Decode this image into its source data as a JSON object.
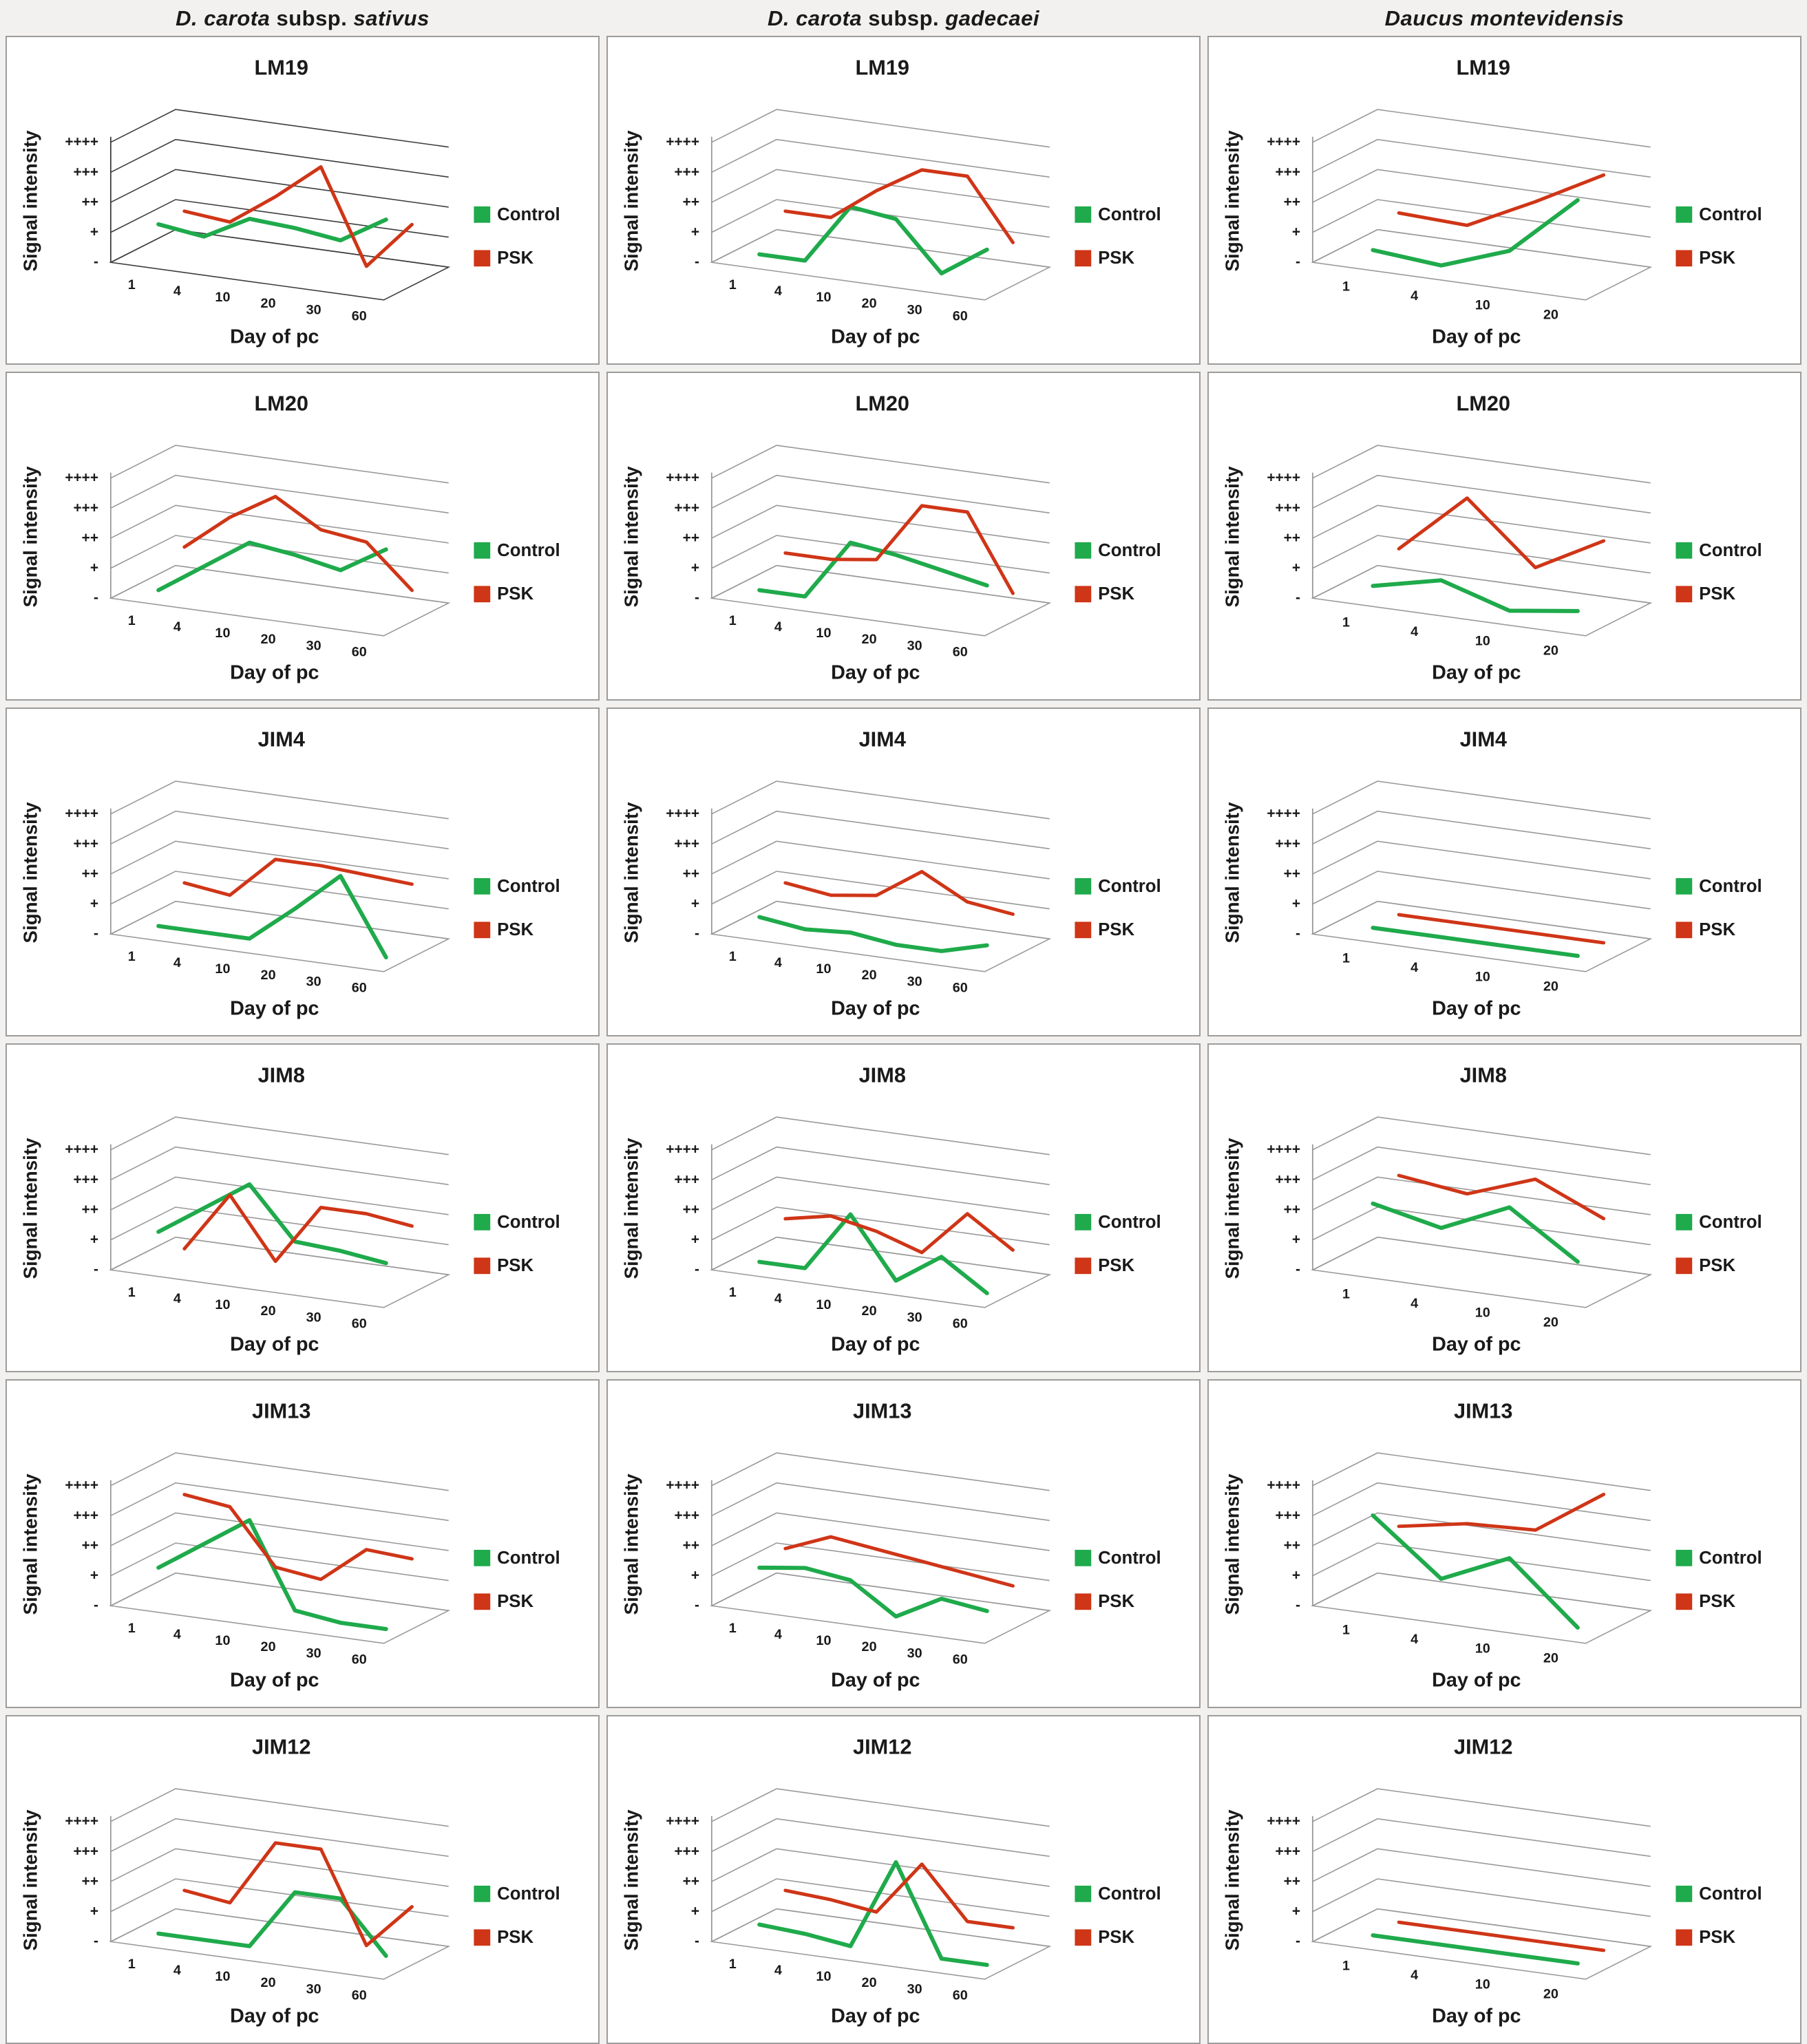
{
  "columns": [
    {
      "header_parts": [
        {
          "text": "D. carota",
          "italic": true
        },
        {
          "text": " subsp. ",
          "italic": false
        },
        {
          "text": "sativus",
          "italic": true
        }
      ],
      "header_text": "D. carota subsp. sativus"
    },
    {
      "header_parts": [
        {
          "text": "D. carota",
          "italic": true
        },
        {
          "text": " subsp. ",
          "italic": false
        },
        {
          "text": "gadecaei",
          "italic": true
        }
      ],
      "header_text": "D. carota subsp. gadecaei"
    },
    {
      "header_parts": [
        {
          "text": "Daucus montevidensis",
          "italic": true
        }
      ],
      "header_text": "Daucus montevidensis"
    }
  ],
  "axis": {
    "xlabel": "Day of pc",
    "ylabel": "Signal intensity",
    "yticks_bottom_to_top": [
      "-",
      "+",
      "++",
      "+++",
      "++++"
    ],
    "value_scale_note": "0 = '-', 1 = '+', 2 = '++', 3 = '+++', 4 = '++++'"
  },
  "legend": {
    "control_label": "Control",
    "psk_label": "PSK",
    "position": "right"
  },
  "colors": {
    "control": "#1faa4b",
    "psk": "#cf3517",
    "grid": "#999999",
    "grid_dark": "#3c3c3c",
    "text": "#1a1a1a",
    "panel_border": "#9c9c9c"
  },
  "chart_data": [
    {
      "type": "line",
      "title": "LM19",
      "species": "D. carota subsp. sativus",
      "col": 0,
      "row": 0,
      "grid": "dark",
      "x": [
        1,
        4,
        10,
        20,
        30,
        60
      ],
      "xlabel": "Day of pc",
      "ylabel": "Signal intensity",
      "ylim": [
        0,
        4
      ],
      "series": [
        {
          "name": "Control",
          "values": [
            1,
            0.8,
            1.6,
            1.5,
            1.3,
            2.2
          ]
        },
        {
          "name": "PSK",
          "values": [
            1,
            0.85,
            1.9,
            3.1,
            0,
            1.6
          ]
        }
      ]
    },
    {
      "type": "line",
      "title": "LM19",
      "species": "D. carota subsp. gadecaei",
      "col": 1,
      "row": 0,
      "grid": "normal",
      "x": [
        1,
        4,
        10,
        20,
        30,
        60
      ],
      "xlabel": "Day of pc",
      "ylabel": "Signal intensity",
      "ylim": [
        0,
        4
      ],
      "series": [
        {
          "name": "Control",
          "values": [
            0,
            0,
            2,
            1.8,
            0.2,
            1.2
          ]
        },
        {
          "name": "PSK",
          "values": [
            1,
            1,
            2.1,
            3,
            3,
            1
          ]
        }
      ]
    },
    {
      "type": "line",
      "title": "LM19",
      "species": "Daucus montevidensis",
      "col": 2,
      "row": 0,
      "grid": "normal",
      "x": [
        1,
        4,
        10,
        20
      ],
      "xlabel": "Day of pc",
      "ylabel": "Signal intensity",
      "ylim": [
        0,
        4
      ],
      "series": [
        {
          "name": "Control",
          "values": [
            0.2,
            0,
            0.8,
            2.8
          ]
        },
        {
          "name": "PSK",
          "values": [
            1,
            0.9,
            2,
            3.2
          ]
        }
      ]
    },
    {
      "type": "line",
      "title": "LM20",
      "species": "D. carota subsp. sativus",
      "col": 0,
      "row": 1,
      "grid": "normal",
      "x": [
        1,
        4,
        10,
        20,
        30,
        60
      ],
      "xlabel": "Day of pc",
      "ylabel": "Signal intensity",
      "ylim": [
        0,
        4
      ],
      "series": [
        {
          "name": "Control",
          "values": [
            0,
            1,
            2,
            1.8,
            1.5,
            2.4
          ]
        },
        {
          "name": "PSK",
          "values": [
            1,
            2.2,
            3.1,
            2.2,
            2,
            0.6
          ]
        }
      ]
    },
    {
      "type": "line",
      "title": "LM20",
      "species": "D. carota subsp. gadecaei",
      "col": 1,
      "row": 1,
      "grid": "normal",
      "x": [
        1,
        4,
        10,
        20,
        30,
        60
      ],
      "xlabel": "Day of pc",
      "ylabel": "Signal intensity",
      "ylim": [
        0,
        4
      ],
      "series": [
        {
          "name": "Control",
          "values": [
            0,
            0,
            2,
            1.8,
            1.5,
            1.2
          ]
        },
        {
          "name": "PSK",
          "values": [
            0.8,
            0.8,
            1,
            3,
            3,
            0.5
          ]
        }
      ]
    },
    {
      "type": "line",
      "title": "LM20",
      "species": "Daucus montevidensis",
      "col": 2,
      "row": 1,
      "grid": "normal",
      "x": [
        1,
        4,
        10,
        20
      ],
      "xlabel": "Day of pc",
      "ylabel": "Signal intensity",
      "ylim": [
        0,
        4
      ],
      "series": [
        {
          "name": "Control",
          "values": [
            0.2,
            0.7,
            0,
            0.3
          ]
        },
        {
          "name": "PSK",
          "values": [
            1,
            3,
            1,
            2.2
          ]
        }
      ]
    },
    {
      "type": "line",
      "title": "JIM4",
      "species": "D. carota subsp. sativus",
      "col": 0,
      "row": 2,
      "grid": "normal",
      "x": [
        1,
        4,
        10,
        20,
        30,
        60
      ],
      "xlabel": "Day of pc",
      "ylabel": "Signal intensity",
      "ylim": [
        0,
        4
      ],
      "series": [
        {
          "name": "Control",
          "values": [
            0,
            0,
            0,
            1.2,
            2.5,
            0
          ]
        },
        {
          "name": "PSK",
          "values": [
            1,
            0.8,
            2.2,
            2.2,
            2.1,
            2
          ]
        }
      ]
    },
    {
      "type": "line",
      "title": "JIM4",
      "species": "D. carota subsp. gadecaei",
      "col": 1,
      "row": 2,
      "grid": "normal",
      "x": [
        1,
        4,
        10,
        20,
        30,
        60
      ],
      "xlabel": "Day of pc",
      "ylabel": "Signal intensity",
      "ylim": [
        0,
        4
      ],
      "series": [
        {
          "name": "Control",
          "values": [
            0.3,
            0.1,
            0.2,
            0,
            0,
            0.4
          ]
        },
        {
          "name": "PSK",
          "values": [
            1,
            0.8,
            1,
            2,
            1.2,
            1
          ]
        }
      ]
    },
    {
      "type": "line",
      "title": "JIM4",
      "species": "Daucus montevidensis",
      "col": 2,
      "row": 2,
      "grid": "normal",
      "x": [
        1,
        4,
        10,
        20
      ],
      "xlabel": "Day of pc",
      "ylabel": "Signal intensity",
      "ylim": [
        0,
        4
      ],
      "series": [
        {
          "name": "Control",
          "values": [
            0,
            0,
            0,
            0
          ]
        },
        {
          "name": "PSK",
          "values": [
            0,
            0,
            0,
            0
          ]
        }
      ]
    },
    {
      "type": "line",
      "title": "JIM8",
      "species": "D. carota subsp. sativus",
      "col": 0,
      "row": 3,
      "grid": "normal",
      "x": [
        1,
        4,
        10,
        20,
        30,
        60
      ],
      "xlabel": "Day of pc",
      "ylabel": "Signal intensity",
      "ylim": [
        0,
        4
      ],
      "series": [
        {
          "name": "Control",
          "values": [
            1,
            2,
            3,
            1.3,
            1.2,
            1
          ]
        },
        {
          "name": "PSK",
          "values": [
            0,
            2,
            0,
            2,
            2,
            1.8
          ]
        }
      ]
    },
    {
      "type": "line",
      "title": "JIM8",
      "species": "D. carota subsp. gadecaei",
      "col": 1,
      "row": 3,
      "grid": "normal",
      "x": [
        1,
        4,
        10,
        20,
        30,
        60
      ],
      "xlabel": "Day of pc",
      "ylabel": "Signal intensity",
      "ylim": [
        0,
        4
      ],
      "series": [
        {
          "name": "Control",
          "values": [
            0,
            0,
            2,
            0,
            1,
            0
          ]
        },
        {
          "name": "PSK",
          "values": [
            1,
            1.3,
            1,
            0.5,
            2,
            1
          ]
        }
      ]
    },
    {
      "type": "line",
      "title": "JIM8",
      "species": "Daucus montevidensis",
      "col": 2,
      "row": 3,
      "grid": "normal",
      "x": [
        1,
        4,
        10,
        20
      ],
      "xlabel": "Day of pc",
      "ylabel": "Signal intensity",
      "ylim": [
        0,
        4
      ],
      "series": [
        {
          "name": "Control",
          "values": [
            2,
            1.5,
            2.5,
            1
          ]
        },
        {
          "name": "PSK",
          "values": [
            2.5,
            2.2,
            3,
            2
          ]
        }
      ]
    },
    {
      "type": "line",
      "title": "JIM13",
      "species": "D. carota subsp. sativus",
      "col": 0,
      "row": 4,
      "grid": "normal",
      "x": [
        1,
        4,
        10,
        20,
        30,
        60
      ],
      "xlabel": "Day of pc",
      "ylabel": "Signal intensity",
      "ylim": [
        0,
        4
      ],
      "series": [
        {
          "name": "Control",
          "values": [
            1,
            2,
            3,
            0.2,
            0,
            0
          ]
        },
        {
          "name": "PSK",
          "values": [
            3,
            2.8,
            1,
            0.8,
            2,
            1.9
          ]
        }
      ]
    },
    {
      "type": "line",
      "title": "JIM13",
      "species": "D. carota subsp. gadecaei",
      "col": 1,
      "row": 4,
      "grid": "normal",
      "x": [
        1,
        4,
        10,
        20,
        30,
        60
      ],
      "xlabel": "Day of pc",
      "ylabel": "Signal intensity",
      "ylim": [
        0,
        4
      ],
      "series": [
        {
          "name": "Control",
          "values": [
            1,
            1.2,
            1,
            0,
            0.8,
            0.6
          ]
        },
        {
          "name": "PSK",
          "values": [
            1.2,
            1.8,
            1.6,
            1.4,
            1.2,
            1
          ]
        }
      ]
    },
    {
      "type": "line",
      "title": "JIM13",
      "species": "Daucus montevidensis",
      "col": 2,
      "row": 4,
      "grid": "normal",
      "x": [
        1,
        4,
        10,
        20
      ],
      "xlabel": "Day of pc",
      "ylabel": "Signal intensity",
      "ylim": [
        0,
        4
      ],
      "series": [
        {
          "name": "Control",
          "values": [
            2.8,
            1,
            2,
            0
          ]
        },
        {
          "name": "PSK",
          "values": [
            2,
            2.4,
            2.5,
            4
          ]
        }
      ]
    },
    {
      "type": "line",
      "title": "JIM12",
      "species": "D. carota subsp. sativus",
      "col": 0,
      "row": 5,
      "grid": "normal",
      "x": [
        1,
        4,
        10,
        20,
        30,
        60
      ],
      "xlabel": "Day of pc",
      "ylabel": "Signal intensity",
      "ylim": [
        0,
        4
      ],
      "series": [
        {
          "name": "Control",
          "values": [
            0,
            0,
            0,
            2,
            2,
            0.3
          ]
        },
        {
          "name": "PSK",
          "values": [
            1,
            0.8,
            3,
            3,
            0,
            1.5
          ]
        }
      ]
    },
    {
      "type": "line",
      "title": "JIM12",
      "species": "D. carota subsp. gadecaei",
      "col": 1,
      "row": 5,
      "grid": "normal",
      "x": [
        1,
        4,
        10,
        20,
        30,
        60
      ],
      "xlabel": "Day of pc",
      "ylabel": "Signal intensity",
      "ylim": [
        0,
        4
      ],
      "series": [
        {
          "name": "Control",
          "values": [
            0.3,
            0.2,
            0,
            3,
            0,
            0
          ]
        },
        {
          "name": "PSK",
          "values": [
            1,
            0.9,
            0.7,
            2.5,
            0.8,
            0.8
          ]
        }
      ]
    },
    {
      "type": "line",
      "title": "JIM12",
      "species": "Daucus montevidensis",
      "col": 2,
      "row": 5,
      "grid": "normal",
      "x": [
        1,
        4,
        10,
        20
      ],
      "xlabel": "Day of pc",
      "ylabel": "Signal intensity",
      "ylim": [
        0,
        4
      ],
      "series": [
        {
          "name": "Control",
          "values": [
            0,
            0,
            0,
            0
          ]
        },
        {
          "name": "PSK",
          "values": [
            0,
            0,
            0,
            0
          ]
        }
      ]
    }
  ]
}
